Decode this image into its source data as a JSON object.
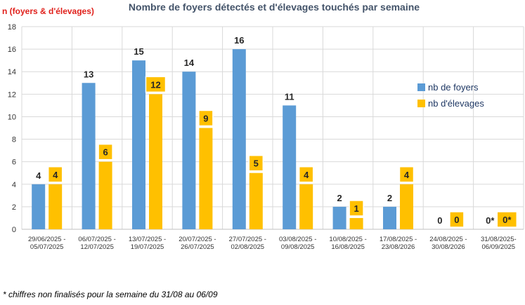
{
  "chart_data": {
    "type": "bar",
    "title": "Nombre de foyers détectés et d'élevages touchés par semaine",
    "ylabel": "n (foyers & d'élevages)",
    "xlabel": "",
    "ylim": [
      0,
      18
    ],
    "yticks": [
      0,
      2,
      4,
      6,
      8,
      10,
      12,
      14,
      16,
      18
    ],
    "grid": true,
    "legend_position": "right",
    "categories": [
      [
        "29/06/2025 -",
        "05/07/2025"
      ],
      [
        "06/07/2025 -",
        "12/07/2025"
      ],
      [
        "13/07/2025 -",
        "19/07/2025"
      ],
      [
        "20/07/2025 -",
        "26/07/2025"
      ],
      [
        "27/07/2025 -",
        "02/08/2025"
      ],
      [
        "03/08/2025 -",
        "09/08/2025"
      ],
      [
        "10/08/2025 -",
        "16/08/2025"
      ],
      [
        "17/08/2025 -",
        "23/08/2026"
      ],
      [
        "24/08/2025 -",
        "30/08/2026"
      ],
      [
        "31/08/2025-",
        "06/09/2025"
      ]
    ],
    "series": [
      {
        "name": "nb de foyers",
        "color": "#5B9BD5",
        "values": [
          4,
          13,
          15,
          14,
          16,
          11,
          2,
          2,
          0,
          0
        ],
        "labels": [
          "4",
          "13",
          "15",
          "14",
          "16",
          "11",
          "2",
          "2",
          "0",
          "0*"
        ]
      },
      {
        "name": "nb  d'élevages",
        "color": "#FFC000",
        "values": [
          4,
          6,
          12,
          9,
          5,
          4,
          1,
          4,
          0,
          0
        ],
        "labels": [
          "4",
          "6",
          "12",
          "9",
          "5",
          "4",
          "1",
          "4",
          "0",
          "0*"
        ]
      }
    ]
  },
  "footnote": "* chiffres non finalisés pour la semaine du 31/08 au 06/09"
}
